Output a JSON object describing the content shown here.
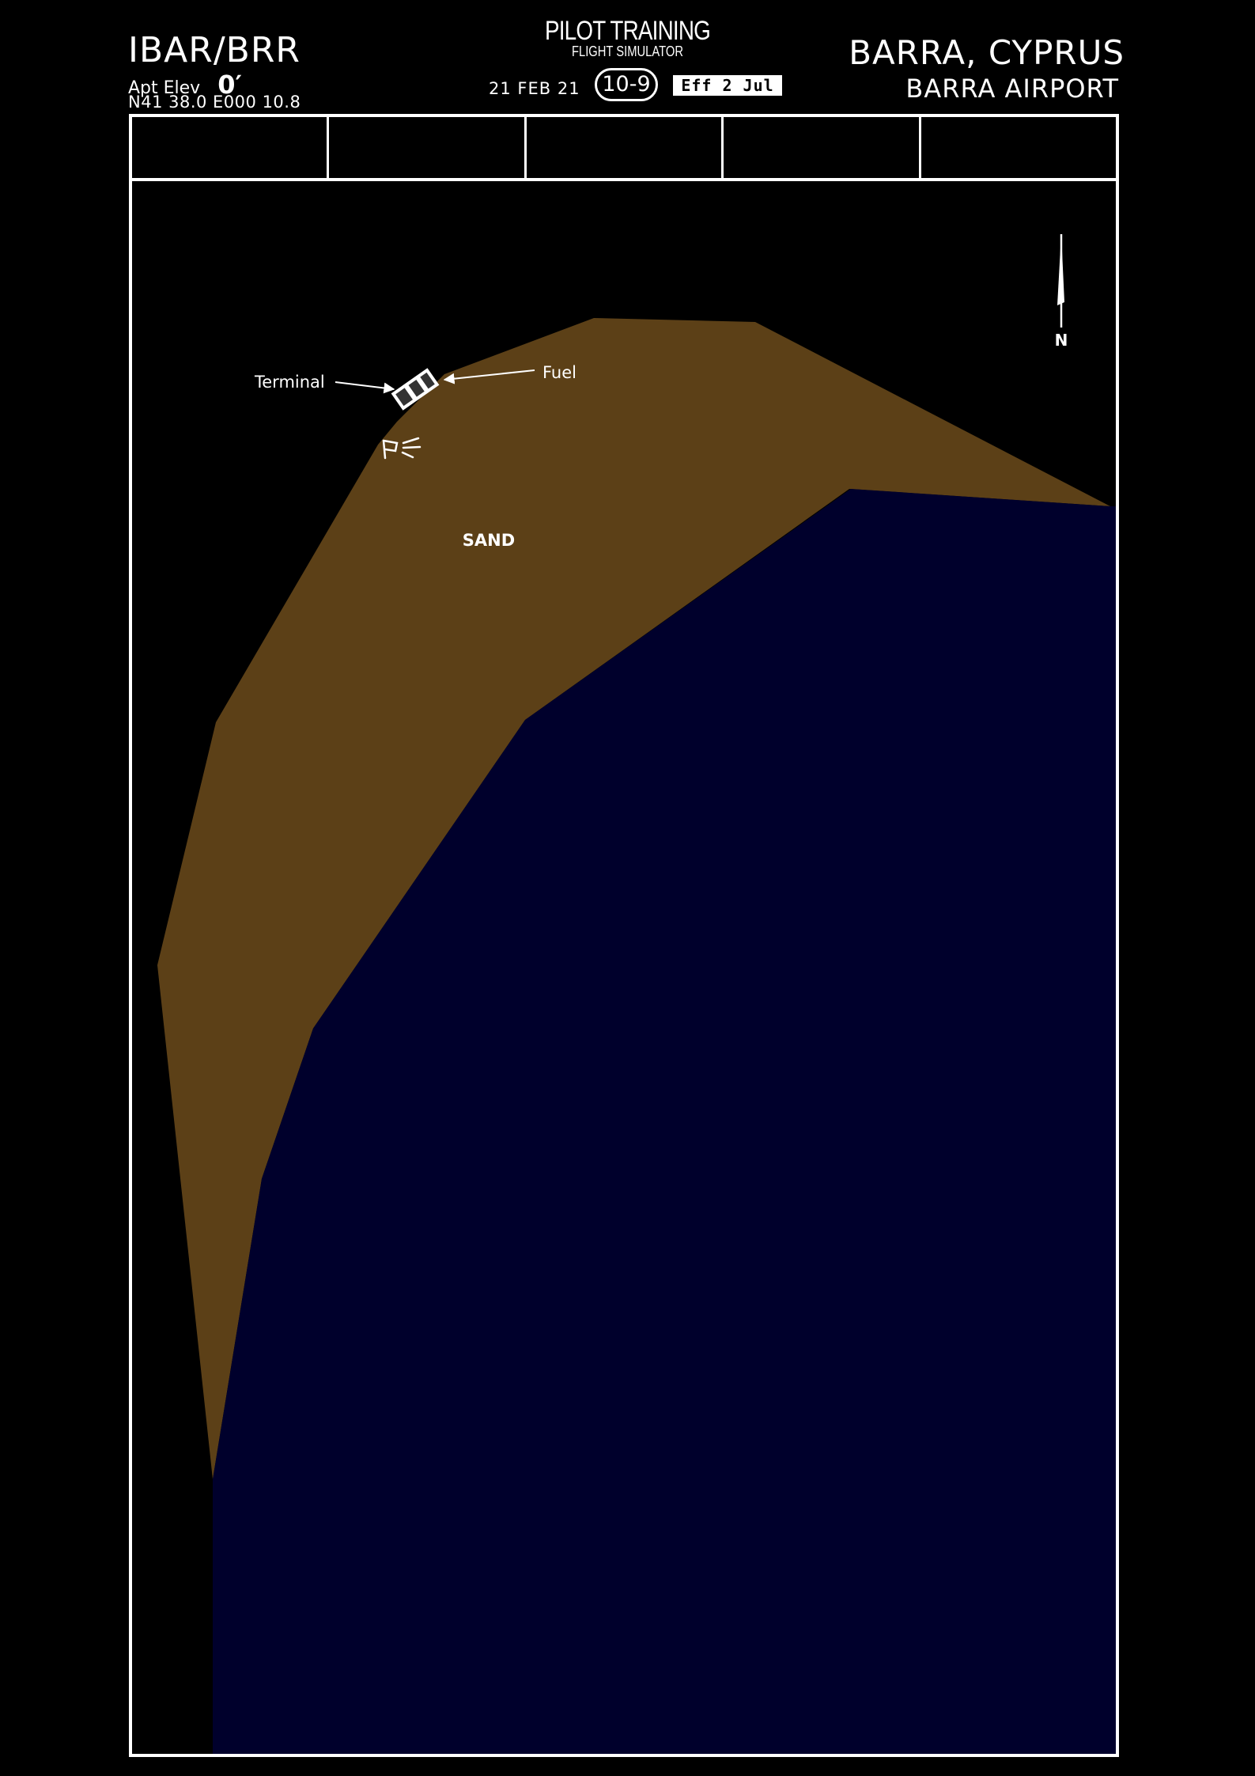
{
  "header": {
    "ident": "IBAR/BRR",
    "apt_elev_label": "Apt Elev",
    "apt_elev_value": "0′",
    "coordinates": "N41 38.0  E000 10.8",
    "banner_title": "PILOT TRAINING",
    "banner_subtitle": "FLIGHT SIMULATOR",
    "chart_date": "21 FEB 21",
    "chart_index": "10-9",
    "effective": "Eff 2 Jul",
    "city": "BARRA, CYPRUS",
    "airport_name": "BARRA AIRPORT"
  },
  "info_bar": {
    "cells": [
      "",
      "",
      "",
      "",
      ""
    ]
  },
  "map": {
    "sand_label": "SAND",
    "terminal_label": "Terminal",
    "fuel_label": "Fuel",
    "north_label": "N",
    "colors": {
      "background": "#000000",
      "sand": "#5c4017",
      "water": "#00002c",
      "lines": "#ffffff"
    },
    "icons": [
      "terminal-building-icon",
      "windsock-icon",
      "north-arrow-icon"
    ]
  }
}
